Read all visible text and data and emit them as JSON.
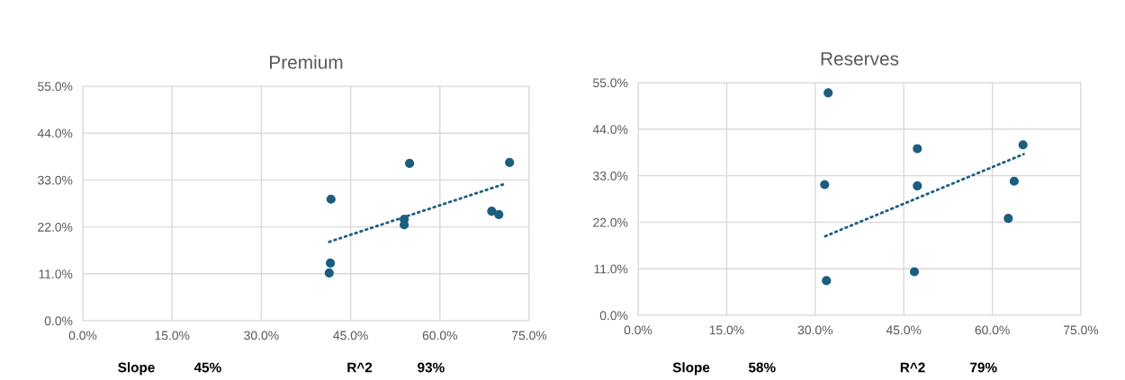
{
  "chart_data": [
    {
      "type": "scatter",
      "title": "Premium",
      "xlim": [
        0,
        75
      ],
      "ylim": [
        0,
        55
      ],
      "xticks": [
        {
          "value": 0,
          "label": "0.0%"
        },
        {
          "value": 15,
          "label": "15.0%"
        },
        {
          "value": 30,
          "label": "30.0%"
        },
        {
          "value": 45,
          "label": "45.0%"
        },
        {
          "value": 60,
          "label": "60.0%"
        },
        {
          "value": 75,
          "label": "75.0%"
        }
      ],
      "yticks": [
        {
          "value": 0,
          "label": "0.0%"
        },
        {
          "value": 11,
          "label": "11.0%"
        },
        {
          "value": 22,
          "label": "22.0%"
        },
        {
          "value": 33,
          "label": "33.0%"
        },
        {
          "value": 44,
          "label": "44.0%"
        },
        {
          "value": 55,
          "label": "55.0%"
        }
      ],
      "grid": true,
      "legend": false,
      "annotations": [
        "Slope",
        "45%",
        "R^2",
        "93%"
      ],
      "series": [
        {
          "color": "#1b5e7e",
          "marker": "circle",
          "x": [
            41.7,
            41.6,
            41.4,
            54.9,
            54.0,
            54.0,
            68.7,
            69.9,
            71.7
          ],
          "values": [
            28.5,
            13.5,
            11.2,
            36.9,
            23.8,
            22.5,
            25.7,
            24.9,
            37.1
          ]
        },
        {
          "type": "line",
          "color": "#1b5e7e",
          "line_style": "dotted",
          "marker": "none",
          "x": [
            41.4,
            71.1
          ],
          "values": [
            18.5,
            32.2
          ]
        }
      ]
    },
    {
      "type": "scatter",
      "title": "Reserves",
      "xlim": [
        0,
        75
      ],
      "ylim": [
        0,
        55
      ],
      "xticks": [
        {
          "value": 0,
          "label": "0.0%"
        },
        {
          "value": 15,
          "label": "15.0%"
        },
        {
          "value": 30,
          "label": "30.0%"
        },
        {
          "value": 45,
          "label": "45.0%"
        },
        {
          "value": 60,
          "label": "60.0%"
        },
        {
          "value": 75,
          "label": "75.0%"
        }
      ],
      "yticks": [
        {
          "value": 0,
          "label": "0.0%"
        },
        {
          "value": 11,
          "label": "11.0%"
        },
        {
          "value": 22,
          "label": "22.0%"
        },
        {
          "value": 33,
          "label": "33.0%"
        },
        {
          "value": 44,
          "label": "44.0%"
        },
        {
          "value": 55,
          "label": "55.0%"
        }
      ],
      "grid": true,
      "legend": false,
      "annotations": [
        "Slope",
        "58%",
        "R^2",
        "79%"
      ],
      "series": [
        {
          "color": "#1b5e7e",
          "marker": "circle",
          "x": [
            32.2,
            47.3,
            65.2,
            31.6,
            47.3,
            63.7,
            62.7,
            46.8,
            31.9
          ],
          "values": [
            52.6,
            39.4,
            40.3,
            30.9,
            30.6,
            31.7,
            22.9,
            10.3,
            8.2
          ]
        },
        {
          "type": "line",
          "color": "#1b5e7e",
          "line_style": "dotted",
          "marker": "none",
          "x": [
            31.7,
            65.3
          ],
          "values": [
            18.7,
            38.1
          ]
        }
      ]
    }
  ]
}
